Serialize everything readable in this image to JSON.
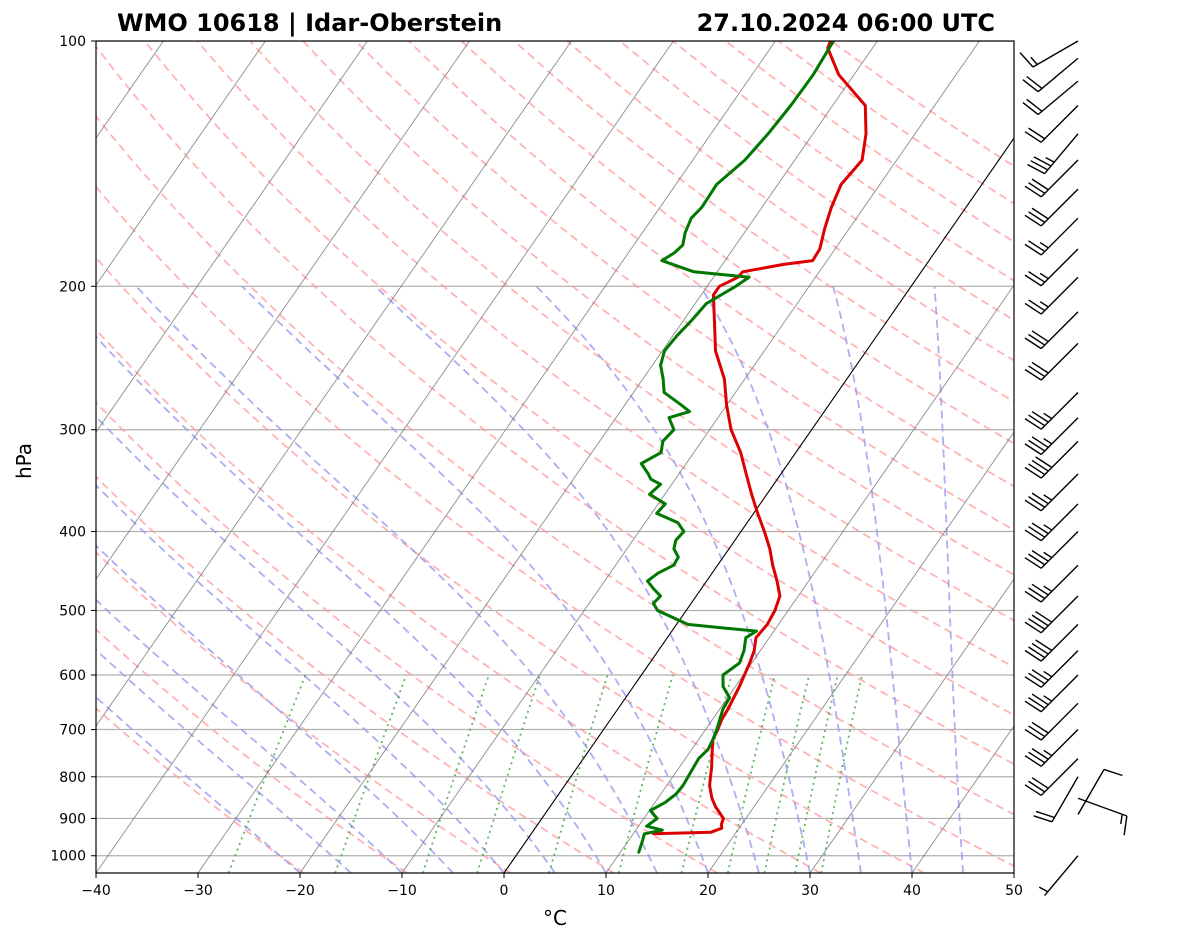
{
  "chart_data": {
    "type": "skew-t",
    "title_left": "WMO 10618 | Idar-Oberstein",
    "title_right": "27.10.2024 06:00 UTC",
    "xlabel": "°C",
    "ylabel": "hPa",
    "xlim": [
      -40,
      50
    ],
    "plim": [
      1050,
      100
    ],
    "xticks": [
      -40,
      -30,
      -20,
      -10,
      0,
      10,
      20,
      30,
      40,
      50
    ],
    "xtick_labels": [
      "−40",
      "−30",
      "−20",
      "−10",
      "0",
      "10",
      "20",
      "30",
      "40",
      "50"
    ],
    "pticks": [
      1000,
      900,
      800,
      700,
      600,
      500,
      400,
      300,
      200,
      100
    ],
    "ptick_labels": [
      "1000",
      "900",
      "800",
      "700",
      "600",
      "500",
      "400",
      "300",
      "200",
      "100"
    ],
    "zero_isotherm": 0,
    "colors": {
      "temperature": "#dd0000",
      "dewpoint": "#007700",
      "dry_adiabat": "#ff9999",
      "moist_adiabat": "#9999ee",
      "mixing_ratio": "#44aa44",
      "isotherm": "#777777",
      "grid": "#b0b0b0"
    },
    "series": [
      {
        "name": "Temperature",
        "points": [
          [
            940,
            12.0
          ],
          [
            936,
            17.5
          ],
          [
            925,
            18.3
          ],
          [
            915,
            18.0
          ],
          [
            900,
            17.8
          ],
          [
            870,
            16.2
          ],
          [
            850,
            15.3
          ],
          [
            820,
            14.2
          ],
          [
            800,
            13.7
          ],
          [
            780,
            13.2
          ],
          [
            760,
            12.6
          ],
          [
            740,
            12.0
          ],
          [
            720,
            11.4
          ],
          [
            700,
            11.2
          ],
          [
            680,
            10.9
          ],
          [
            660,
            10.8
          ],
          [
            640,
            10.6
          ],
          [
            620,
            10.4
          ],
          [
            600,
            10.1
          ],
          [
            580,
            9.8
          ],
          [
            560,
            9.4
          ],
          [
            540,
            8.7
          ],
          [
            520,
            8.9
          ],
          [
            500,
            8.7
          ],
          [
            480,
            8.2
          ],
          [
            460,
            6.9
          ],
          [
            440,
            5.4
          ],
          [
            420,
            4.0
          ],
          [
            400,
            2.3
          ],
          [
            380,
            0.4
          ],
          [
            360,
            -1.5
          ],
          [
            340,
            -3.4
          ],
          [
            320,
            -5.4
          ],
          [
            300,
            -7.9
          ],
          [
            280,
            -10.0
          ],
          [
            260,
            -12.0
          ],
          [
            240,
            -14.8
          ],
          [
            220,
            -17.0
          ],
          [
            205,
            -18.8
          ],
          [
            200,
            -18.8
          ],
          [
            195,
            -17.6
          ],
          [
            192,
            -17.5
          ],
          [
            188,
            -14.0
          ],
          [
            186,
            -11.4
          ],
          [
            180,
            -11.5
          ],
          [
            170,
            -12.4
          ],
          [
            160,
            -13.2
          ],
          [
            150,
            -13.8
          ],
          [
            140,
            -13.4
          ],
          [
            130,
            -14.8
          ],
          [
            120,
            -16.8
          ],
          [
            110,
            -21.5
          ],
          [
            102,
            -24.4
          ],
          [
            100,
            -24.6
          ]
        ]
      },
      {
        "name": "Dewpoint",
        "points": [
          [
            990,
            11.8
          ],
          [
            960,
            11.4
          ],
          [
            940,
            11.1
          ],
          [
            930,
            12.6
          ],
          [
            920,
            10.8
          ],
          [
            900,
            11.3
          ],
          [
            880,
            10.1
          ],
          [
            860,
            11.0
          ],
          [
            840,
            11.5
          ],
          [
            820,
            11.6
          ],
          [
            800,
            11.5
          ],
          [
            780,
            11.4
          ],
          [
            760,
            11.3
          ],
          [
            740,
            11.6
          ],
          [
            720,
            11.4
          ],
          [
            700,
            11.1
          ],
          [
            680,
            10.7
          ],
          [
            660,
            10.3
          ],
          [
            640,
            10.2
          ],
          [
            620,
            8.8
          ],
          [
            600,
            8.0
          ],
          [
            580,
            8.8
          ],
          [
            560,
            8.4
          ],
          [
            540,
            7.7
          ],
          [
            530,
            8.3
          ],
          [
            525,
            4.6
          ],
          [
            520,
            1.1
          ],
          [
            500,
            -2.8
          ],
          [
            490,
            -3.7
          ],
          [
            480,
            -3.5
          ],
          [
            470,
            -4.7
          ],
          [
            460,
            -5.8
          ],
          [
            450,
            -5.3
          ],
          [
            440,
            -4.3
          ],
          [
            430,
            -4.4
          ],
          [
            420,
            -5.4
          ],
          [
            410,
            -5.8
          ],
          [
            400,
            -5.6
          ],
          [
            390,
            -6.8
          ],
          [
            380,
            -9.5
          ],
          [
            370,
            -9.3
          ],
          [
            360,
            -11.5
          ],
          [
            350,
            -11.1
          ],
          [
            345,
            -12.4
          ],
          [
            340,
            -13.0
          ],
          [
            330,
            -14.4
          ],
          [
            320,
            -13.2
          ],
          [
            310,
            -13.8
          ],
          [
            300,
            -13.5
          ],
          [
            290,
            -14.8
          ],
          [
            285,
            -13.2
          ],
          [
            280,
            -14.4
          ],
          [
            270,
            -17.0
          ],
          [
            260,
            -18.0
          ],
          [
            250,
            -19.2
          ],
          [
            240,
            -19.8
          ],
          [
            230,
            -19.6
          ],
          [
            220,
            -19.2
          ],
          [
            210,
            -18.9
          ],
          [
            200,
            -17.2
          ],
          [
            195,
            -16.5
          ],
          [
            192,
            -22.3
          ],
          [
            186,
            -26.2
          ],
          [
            182,
            -25.5
          ],
          [
            178,
            -25.2
          ],
          [
            172,
            -25.8
          ],
          [
            165,
            -26.2
          ],
          [
            160,
            -25.9
          ],
          [
            150,
            -26.0
          ],
          [
            140,
            -24.9
          ],
          [
            130,
            -24.4
          ],
          [
            120,
            -24.1
          ],
          [
            110,
            -24.0
          ],
          [
            100,
            -24.3
          ]
        ]
      }
    ],
    "wind_barbs": [
      {
        "p": 1000,
        "dir": 220,
        "speed": 5
      },
      {
        "p": 890,
        "dir": 30,
        "speed": 10
      },
      {
        "p": 850,
        "dir": 110,
        "speed": 15
      },
      {
        "p": 800,
        "dir": 210,
        "speed": 20
      },
      {
        "p": 760,
        "dir": 225,
        "speed": 30
      },
      {
        "p": 700,
        "dir": 225,
        "speed": 35
      },
      {
        "p": 650,
        "dir": 225,
        "speed": 30
      },
      {
        "p": 600,
        "dir": 225,
        "speed": 35
      },
      {
        "p": 560,
        "dir": 225,
        "speed": 35
      },
      {
        "p": 520,
        "dir": 225,
        "speed": 40
      },
      {
        "p": 480,
        "dir": 225,
        "speed": 40
      },
      {
        "p": 440,
        "dir": 225,
        "speed": 35
      },
      {
        "p": 400,
        "dir": 225,
        "speed": 35
      },
      {
        "p": 370,
        "dir": 225,
        "speed": 35
      },
      {
        "p": 340,
        "dir": 225,
        "speed": 35
      },
      {
        "p": 310,
        "dir": 225,
        "speed": 40
      },
      {
        "p": 290,
        "dir": 225,
        "speed": 35
      },
      {
        "p": 270,
        "dir": 225,
        "speed": 35
      },
      {
        "p": 235,
        "dir": 225,
        "speed": 30
      },
      {
        "p": 215,
        "dir": 225,
        "speed": 30
      },
      {
        "p": 195,
        "dir": 225,
        "speed": 25
      },
      {
        "p": 180,
        "dir": 225,
        "speed": 25
      },
      {
        "p": 165,
        "dir": 225,
        "speed": 25
      },
      {
        "p": 152,
        "dir": 225,
        "speed": 30
      },
      {
        "p": 140,
        "dir": 225,
        "speed": 30
      },
      {
        "p": 130,
        "dir": 220,
        "speed": 35
      },
      {
        "p": 120,
        "dir": 225,
        "speed": 20
      },
      {
        "p": 112,
        "dir": 230,
        "speed": 20
      },
      {
        "p": 105,
        "dir": 230,
        "speed": 20
      },
      {
        "p": 100,
        "dir": 240,
        "speed": 15
      }
    ]
  }
}
